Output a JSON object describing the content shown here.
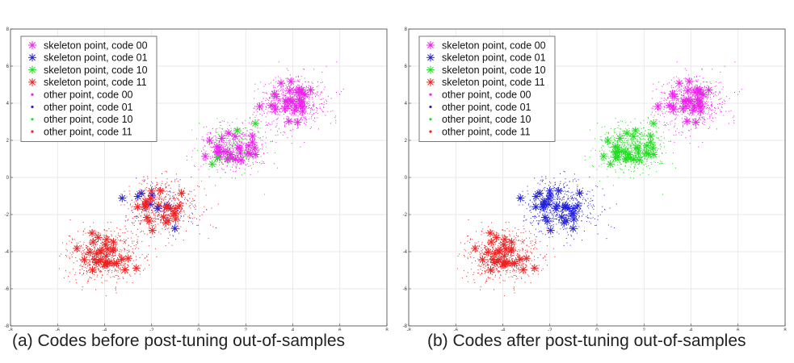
{
  "chart_data": [
    {
      "type": "scatter",
      "caption": "(a) Codes before post-tuning out-of-samples",
      "xlim": [
        -8,
        8
      ],
      "ylim": [
        -8,
        8
      ],
      "xticks": [
        "-8",
        "-6",
        "-4",
        "-2",
        "0",
        "2",
        "4",
        "6",
        "8"
      ],
      "yticks": [
        "-8",
        "-6",
        "-4",
        "-2",
        "0",
        "2",
        "4",
        "6",
        "8"
      ],
      "grid": true,
      "legend_position": "top-left",
      "clusters": [
        {
          "center": [
            4,
            4
          ],
          "spread": 0.7
        },
        {
          "center": [
            1.5,
            1.6
          ],
          "spread": 0.7
        },
        {
          "center": [
            -1.6,
            -1.6
          ],
          "spread": 0.75
        },
        {
          "center": [
            -4,
            -4.2
          ],
          "spread": 0.75
        }
      ],
      "series": [
        {
          "name": "skeleton point, code 00",
          "color": "#ee22ee",
          "marker": "asterisk"
        },
        {
          "name": "skeleton point, code 01",
          "color": "#2222dd",
          "marker": "asterisk"
        },
        {
          "name": "skeleton point, code 10",
          "color": "#22dd22",
          "marker": "asterisk"
        },
        {
          "name": "skeleton point, code 11",
          "color": "#ee2222",
          "marker": "asterisk"
        },
        {
          "name": "other point, code 00",
          "color": "#ee22ee",
          "marker": "dot"
        },
        {
          "name": "other point, code 01",
          "color": "#2222dd",
          "marker": "dot"
        },
        {
          "name": "other point, code 10",
          "color": "#22dd22",
          "marker": "dot"
        },
        {
          "name": "other point, code 11",
          "color": "#ee2222",
          "marker": "dot"
        }
      ],
      "cluster_code_mix": [
        {
          "cluster": 0,
          "codes": {
            "00": 1.0
          }
        },
        {
          "cluster": 1,
          "codes": {
            "00": 0.75,
            "10": 0.25
          }
        },
        {
          "cluster": 2,
          "codes": {
            "11": 0.8,
            "01": 0.2
          }
        },
        {
          "cluster": 3,
          "codes": {
            "11": 1.0
          }
        }
      ]
    },
    {
      "type": "scatter",
      "caption": "(b) Codes after post-tuning out-of-samples",
      "xlim": [
        -8,
        8
      ],
      "ylim": [
        -8,
        8
      ],
      "xticks": [
        "-8",
        "-6",
        "-4",
        "-2",
        "0",
        "2",
        "4",
        "6",
        "8"
      ],
      "yticks": [
        "-8",
        "-6",
        "-4",
        "-2",
        "0",
        "2",
        "4",
        "6",
        "8"
      ],
      "grid": true,
      "legend_position": "top-left",
      "clusters": [
        {
          "center": [
            4,
            4
          ],
          "spread": 0.7
        },
        {
          "center": [
            1.5,
            1.6
          ],
          "spread": 0.7
        },
        {
          "center": [
            -1.6,
            -1.6
          ],
          "spread": 0.75
        },
        {
          "center": [
            -4,
            -4.2
          ],
          "spread": 0.75
        }
      ],
      "series": [
        {
          "name": "skeleton point, code 00",
          "color": "#ee22ee",
          "marker": "asterisk"
        },
        {
          "name": "skeleton point, code 01",
          "color": "#2222dd",
          "marker": "asterisk"
        },
        {
          "name": "skeleton point, code 10",
          "color": "#22dd22",
          "marker": "asterisk"
        },
        {
          "name": "skeleton point, code 11",
          "color": "#ee2222",
          "marker": "asterisk"
        },
        {
          "name": "other point, code 00",
          "color": "#ee22ee",
          "marker": "dot"
        },
        {
          "name": "other point, code 01",
          "color": "#2222dd",
          "marker": "dot"
        },
        {
          "name": "other point, code 10",
          "color": "#22dd22",
          "marker": "dot"
        },
        {
          "name": "other point, code 11",
          "color": "#ee2222",
          "marker": "dot"
        }
      ],
      "cluster_code_mix": [
        {
          "cluster": 0,
          "codes": {
            "00": 1.0
          }
        },
        {
          "cluster": 1,
          "codes": {
            "10": 1.0
          }
        },
        {
          "cluster": 2,
          "codes": {
            "01": 1.0
          }
        },
        {
          "cluster": 3,
          "codes": {
            "11": 1.0
          }
        }
      ]
    }
  ]
}
